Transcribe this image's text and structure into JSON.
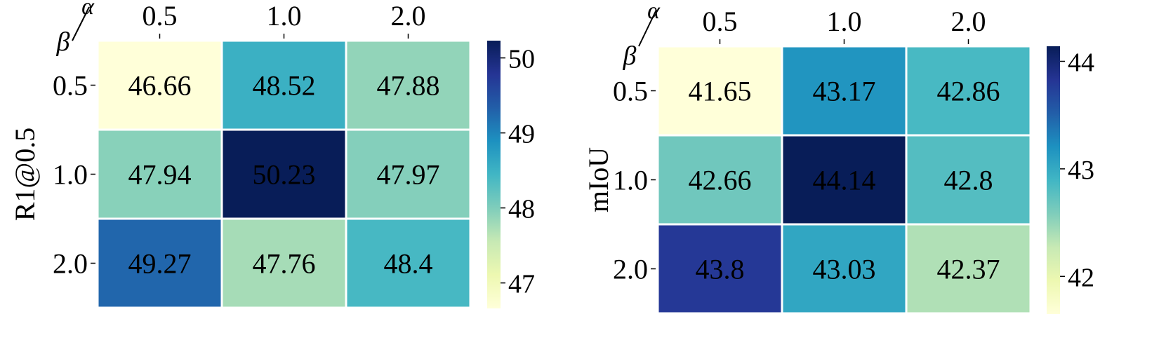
{
  "colormap_stops": [
    "#ffffd9",
    "#edf8b1",
    "#c7e9b4",
    "#7fcdbb",
    "#41b6c4",
    "#1d91c0",
    "#225ea8",
    "#253494",
    "#081d58"
  ],
  "chart_data": [
    {
      "type": "heatmap",
      "title": "",
      "xlabel": "α",
      "ylabel": "R1@0.5",
      "corner_label": "β",
      "x_categories": [
        "0.5",
        "1.0",
        "2.0"
      ],
      "y_categories": [
        "0.5",
        "1.0",
        "2.0"
      ],
      "values": [
        [
          46.66,
          48.52,
          47.88
        ],
        [
          47.94,
          50.23,
          47.97
        ],
        [
          49.27,
          47.76,
          48.4
        ]
      ],
      "value_labels": [
        [
          "46.66",
          "48.52",
          "47.88"
        ],
        [
          "47.94",
          "50.23",
          "47.97"
        ],
        [
          "49.27",
          "47.76",
          "48.4"
        ]
      ],
      "colorbar": {
        "range": [
          46.66,
          50.23
        ],
        "ticks": [
          47,
          48,
          49,
          50
        ],
        "tick_labels": [
          "47",
          "48",
          "49",
          "50"
        ]
      }
    },
    {
      "type": "heatmap",
      "title": "",
      "xlabel": "α",
      "ylabel": "mIoU",
      "corner_label": "β",
      "x_categories": [
        "0.5",
        "1.0",
        "2.0"
      ],
      "y_categories": [
        "0.5",
        "1.0",
        "2.0"
      ],
      "values": [
        [
          41.65,
          43.17,
          42.86
        ],
        [
          42.66,
          44.14,
          42.8
        ],
        [
          43.8,
          43.03,
          42.37
        ]
      ],
      "value_labels": [
        [
          "41.65",
          "43.17",
          "42.86"
        ],
        [
          "42.66",
          "44.14",
          "42.8"
        ],
        [
          "43.8",
          "43.03",
          "42.37"
        ]
      ],
      "colorbar": {
        "range": [
          41.65,
          44.14
        ],
        "ticks": [
          42,
          43,
          44
        ],
        "tick_labels": [
          "42",
          "43",
          "44"
        ]
      }
    }
  ]
}
